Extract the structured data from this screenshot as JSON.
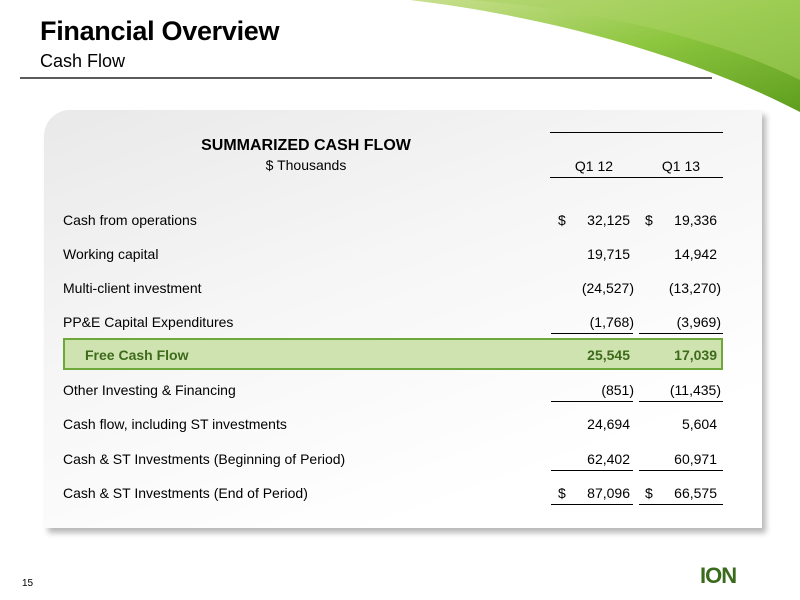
{
  "header": {
    "title": "Financial Overview",
    "subtitle": "Cash Flow"
  },
  "table": {
    "title": "SUMMARIZED CASH FLOW",
    "unit": "$ Thousands",
    "columns": [
      "Q1 12",
      "Q1 13"
    ],
    "currency_symbol": "$",
    "rows": [
      {
        "label": "Cash from operations",
        "q1_12": "32,125",
        "q1_13": "19,336"
      },
      {
        "label": "Working capital",
        "q1_12": "19,715",
        "q1_13": "14,942"
      },
      {
        "label": "Multi-client investment",
        "q1_12": "(24,527)",
        "q1_13": "(13,270)"
      },
      {
        "label": "PP&E Capital Expenditures",
        "q1_12": "(1,768)",
        "q1_13": "(3,969)"
      },
      {
        "label": "Free Cash Flow",
        "q1_12": "25,545",
        "q1_13": "17,039"
      },
      {
        "label": "Other Investing & Financing",
        "q1_12": "(851)",
        "q1_13": "(11,435)"
      },
      {
        "label": "Cash flow, including ST investments",
        "q1_12": "24,694",
        "q1_13": "5,604"
      },
      {
        "label": "Cash & ST Investments (Beginning of Period)",
        "q1_12": "62,402",
        "q1_13": "60,971"
      },
      {
        "label": "Cash & ST Investments (End of Period)",
        "q1_12": "87,096",
        "q1_13": "66,575"
      }
    ]
  },
  "footer": {
    "page_number": "15",
    "logo_text": "ION"
  },
  "colors": {
    "accent_green": "#8dc63f",
    "highlight_fill": "#cfe3b0",
    "highlight_border": "#6ea83a",
    "highlight_text": "#3d6b1b"
  }
}
